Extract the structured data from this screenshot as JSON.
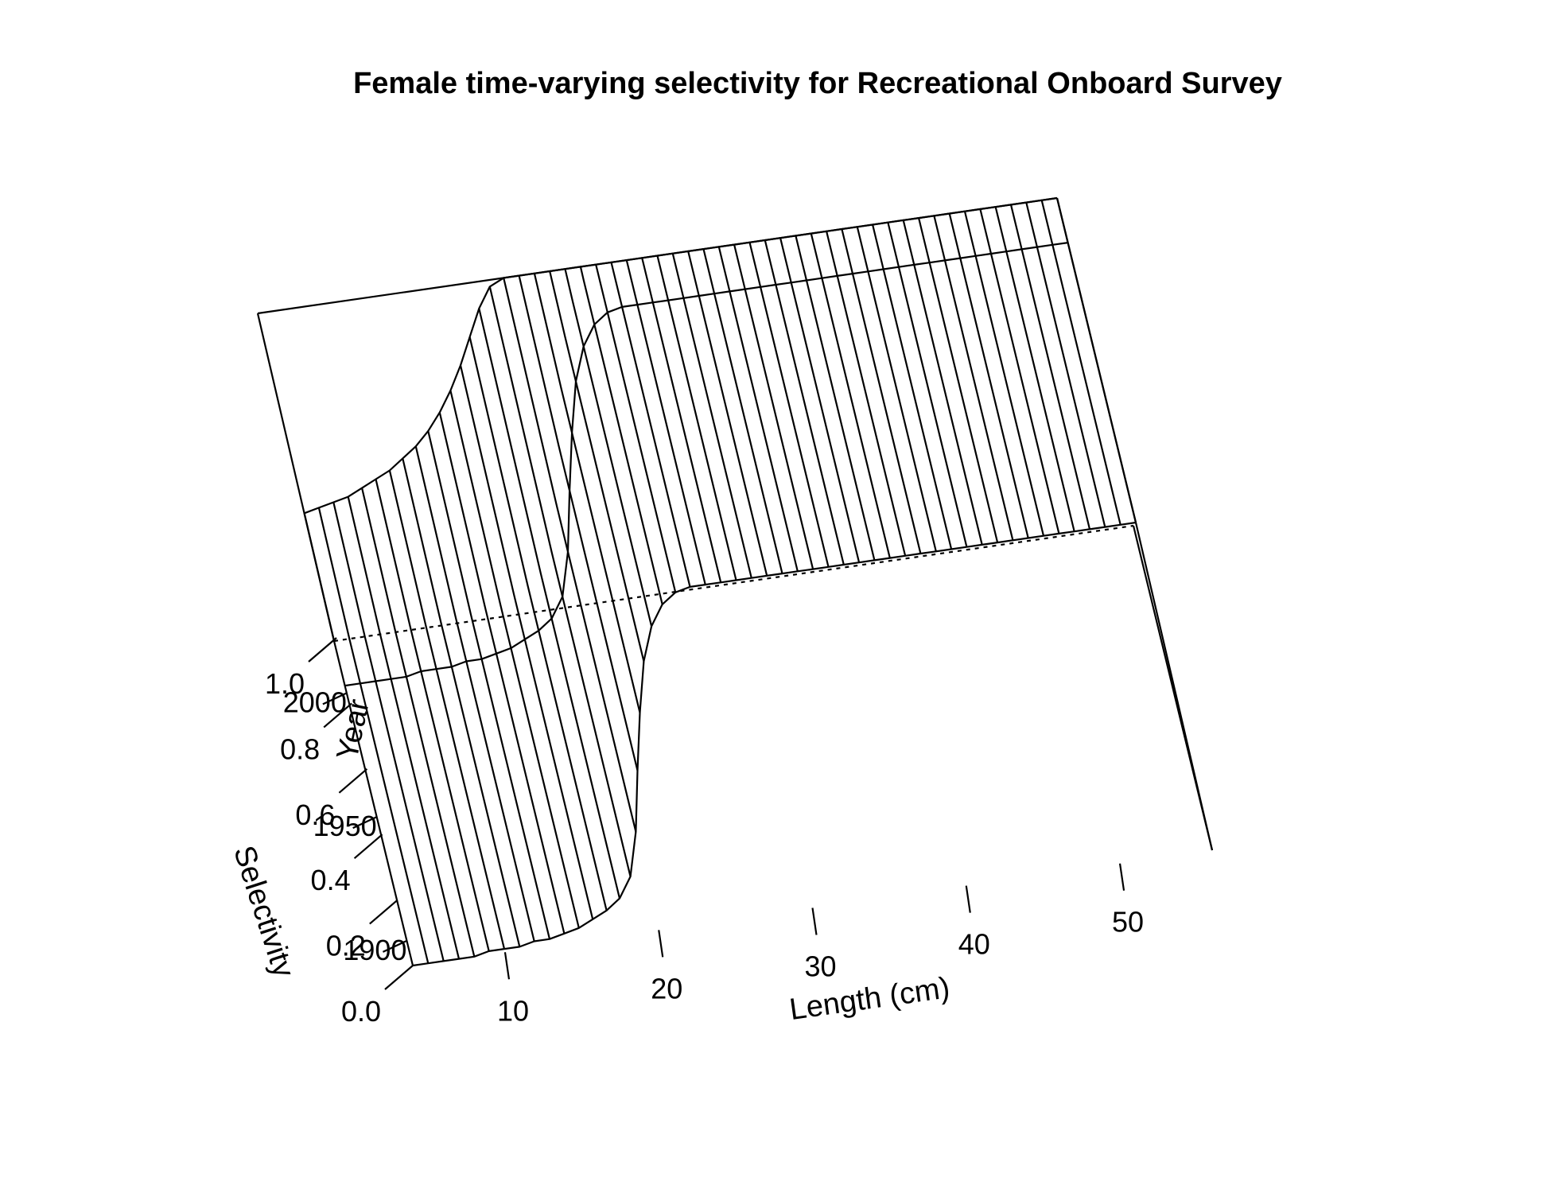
{
  "chart_data": {
    "type": "surface",
    "title": "Female time-varying selectivity for Recreational Onboard Survey",
    "xlabel": "Length (cm)",
    "ylabel": "Year",
    "zlabel": "Selectivity",
    "x_ticks": [
      "10",
      "20",
      "30",
      "40",
      "50"
    ],
    "y_ticks": [
      "1900",
      "1950",
      "2000"
    ],
    "z_ticks": [
      "0.0",
      "0.2",
      "0.4",
      "0.6",
      "0.8",
      "1.0"
    ],
    "xlim": [
      4,
      56
    ],
    "ylim": [
      1890,
      2021
    ],
    "zlim": [
      0,
      1
    ],
    "length_bins": [
      4,
      5,
      6,
      7,
      8,
      9,
      10,
      11,
      12,
      13,
      14,
      15,
      16,
      17,
      18,
      19,
      20,
      21,
      22,
      23,
      24,
      25,
      26,
      27,
      28,
      29,
      30,
      31,
      32,
      33,
      34,
      35,
      36,
      37,
      38,
      39,
      40,
      41,
      42,
      43,
      44,
      45,
      46,
      47,
      48,
      49,
      50,
      51,
      52,
      53,
      54,
      55,
      56
    ],
    "year_breaks": [
      1890,
      2003,
      2021
    ],
    "selectivity_by_length": {
      "before_2004": [
        0.0,
        0.0,
        0.0,
        0.0,
        0.0,
        0.01,
        0.01,
        0.01,
        0.02,
        0.02,
        0.03,
        0.04,
        0.06,
        0.08,
        0.11,
        0.17,
        0.3,
        0.48,
        0.65,
        0.8,
        0.9,
        0.96,
        0.99,
        1.0,
        1.0,
        1.0,
        1.0,
        1.0,
        1.0,
        1.0,
        1.0,
        1.0,
        1.0,
        1.0,
        1.0,
        1.0,
        1.0,
        1.0,
        1.0,
        1.0,
        1.0,
        1.0,
        1.0,
        1.0,
        1.0,
        1.0,
        1.0,
        1.0,
        1.0,
        1.0,
        1.0,
        1.0,
        1.0
      ],
      "2004_onward": [
        0.39,
        0.4,
        0.41,
        0.42,
        0.44,
        0.46,
        0.48,
        0.51,
        0.54,
        0.58,
        0.63,
        0.69,
        0.76,
        0.84,
        0.92,
        0.98,
        1.0,
        1.0,
        1.0,
        1.0,
        1.0,
        1.0,
        1.0,
        1.0,
        1.0,
        1.0,
        1.0,
        1.0,
        1.0,
        1.0,
        1.0,
        1.0,
        1.0,
        1.0,
        1.0,
        1.0,
        1.0,
        1.0,
        1.0,
        1.0,
        1.0,
        1.0,
        1.0,
        1.0,
        1.0,
        1.0,
        1.0,
        1.0,
        1.0,
        1.0,
        1.0,
        1.0,
        1.0
      ]
    }
  }
}
